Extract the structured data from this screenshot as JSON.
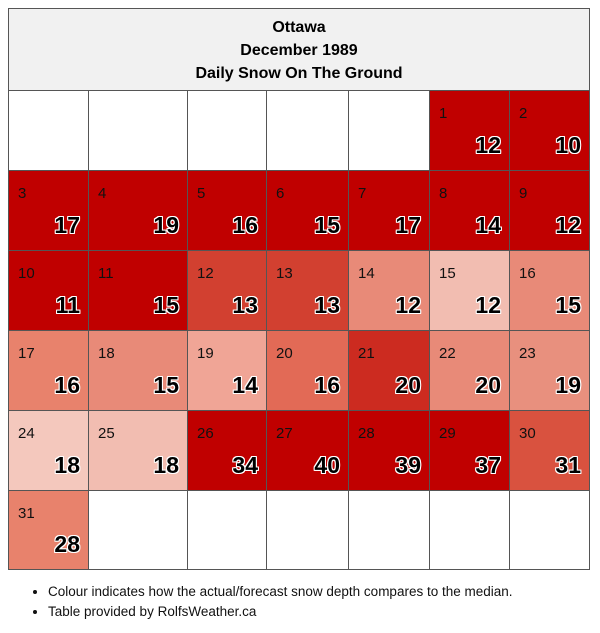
{
  "header": {
    "city": "Ottawa",
    "period": "December 1989",
    "subtitle": "Daily Snow On The Ground"
  },
  "calendar": {
    "start_weekday_index": 5,
    "days": [
      {
        "day": "1",
        "value": "12",
        "color": "#c00000"
      },
      {
        "day": "2",
        "value": "10",
        "color": "#c00000"
      },
      {
        "day": "3",
        "value": "17",
        "color": "#c00000"
      },
      {
        "day": "4",
        "value": "19",
        "color": "#c00000"
      },
      {
        "day": "5",
        "value": "16",
        "color": "#c00000"
      },
      {
        "day": "6",
        "value": "15",
        "color": "#c00000"
      },
      {
        "day": "7",
        "value": "17",
        "color": "#c00000"
      },
      {
        "day": "8",
        "value": "14",
        "color": "#c00000"
      },
      {
        "day": "9",
        "value": "12",
        "color": "#c00000"
      },
      {
        "day": "10",
        "value": "11",
        "color": "#c00000"
      },
      {
        "day": "11",
        "value": "15",
        "color": "#c00000"
      },
      {
        "day": "12",
        "value": "13",
        "color": "#d24030"
      },
      {
        "day": "13",
        "value": "13",
        "color": "#d24030"
      },
      {
        "day": "14",
        "value": "12",
        "color": "#e88a78"
      },
      {
        "day": "15",
        "value": "12",
        "color": "#f2bdb1"
      },
      {
        "day": "16",
        "value": "15",
        "color": "#e88a78"
      },
      {
        "day": "17",
        "value": "16",
        "color": "#e8826c"
      },
      {
        "day": "18",
        "value": "15",
        "color": "#e88a78"
      },
      {
        "day": "19",
        "value": "14",
        "color": "#f0a596"
      },
      {
        "day": "20",
        "value": "16",
        "color": "#e26a56"
      },
      {
        "day": "21",
        "value": "20",
        "color": "#cc2b20"
      },
      {
        "day": "22",
        "value": "20",
        "color": "#e88a78"
      },
      {
        "day": "23",
        "value": "19",
        "color": "#e8907e"
      },
      {
        "day": "24",
        "value": "18",
        "color": "#f4c8bd"
      },
      {
        "day": "25",
        "value": "18",
        "color": "#f2bdb1"
      },
      {
        "day": "26",
        "value": "34",
        "color": "#c00000"
      },
      {
        "day": "27",
        "value": "40",
        "color": "#c00000"
      },
      {
        "day": "28",
        "value": "39",
        "color": "#c00000"
      },
      {
        "day": "29",
        "value": "37",
        "color": "#c00000"
      },
      {
        "day": "30",
        "value": "31",
        "color": "#d9523f"
      },
      {
        "day": "31",
        "value": "28",
        "color": "#e8826c"
      }
    ]
  },
  "notes": [
    "Colour indicates how the actual/forecast snow depth compares to the median.",
    "Table provided by RolfsWeather.ca"
  ]
}
